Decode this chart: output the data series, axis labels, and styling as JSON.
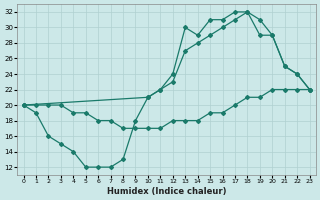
{
  "xlabel": "Humidex (Indice chaleur)",
  "bg_color": "#cce8e8",
  "grid_color": "#b0d0d0",
  "line_color": "#1a7a6a",
  "xlim": [
    -0.5,
    23.5
  ],
  "ylim": [
    11,
    33
  ],
  "xticks": [
    0,
    1,
    2,
    3,
    4,
    5,
    6,
    7,
    8,
    9,
    10,
    11,
    12,
    13,
    14,
    15,
    16,
    17,
    18,
    19,
    20,
    21,
    22,
    23
  ],
  "yticks": [
    12,
    14,
    16,
    18,
    20,
    22,
    24,
    26,
    28,
    30,
    32
  ],
  "line1_x": [
    0,
    1,
    2,
    3,
    4,
    5,
    6,
    7,
    8,
    9,
    10,
    11,
    12,
    13,
    14,
    15,
    16,
    17,
    18,
    19,
    20,
    21,
    22,
    23
  ],
  "line1_y": [
    20,
    19,
    16,
    15,
    14,
    12,
    12,
    12,
    13,
    18,
    21,
    22,
    24,
    30,
    29,
    31,
    31,
    32,
    32,
    31,
    29,
    25,
    24,
    22
  ],
  "line2_x": [
    0,
    10,
    11,
    12,
    13,
    14,
    15,
    16,
    17,
    18,
    19,
    20,
    21,
    22,
    23
  ],
  "line2_y": [
    20,
    21,
    22,
    23,
    27,
    28,
    29,
    30,
    31,
    32,
    29,
    29,
    25,
    24,
    22
  ],
  "line3_x": [
    0,
    1,
    2,
    3,
    4,
    5,
    6,
    7,
    8,
    9,
    10,
    11,
    12,
    13,
    14,
    15,
    16,
    17,
    18,
    19,
    20,
    21,
    22,
    23
  ],
  "line3_y": [
    20,
    20,
    20,
    20,
    19,
    19,
    18,
    18,
    17,
    17,
    17,
    17,
    18,
    18,
    18,
    19,
    19,
    20,
    21,
    21,
    22,
    22,
    22,
    22
  ]
}
